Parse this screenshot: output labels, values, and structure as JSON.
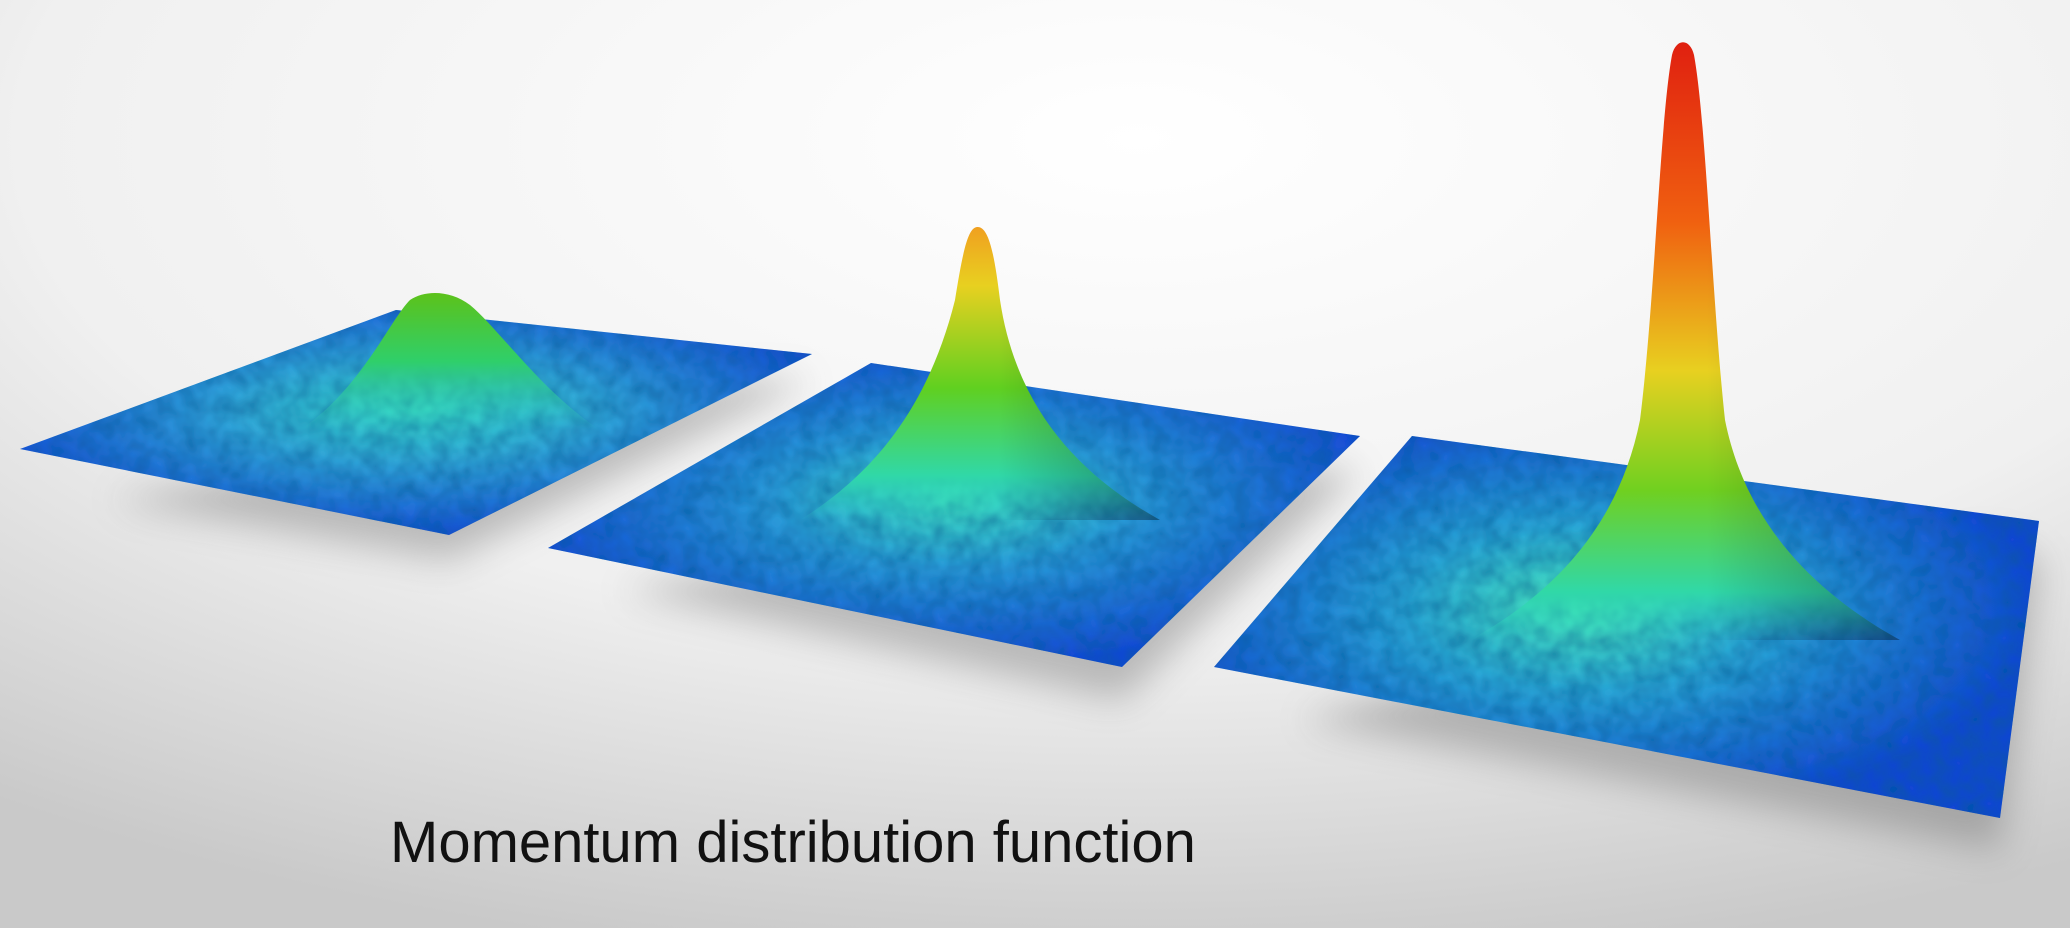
{
  "caption": "Momentum distribution function"
}
